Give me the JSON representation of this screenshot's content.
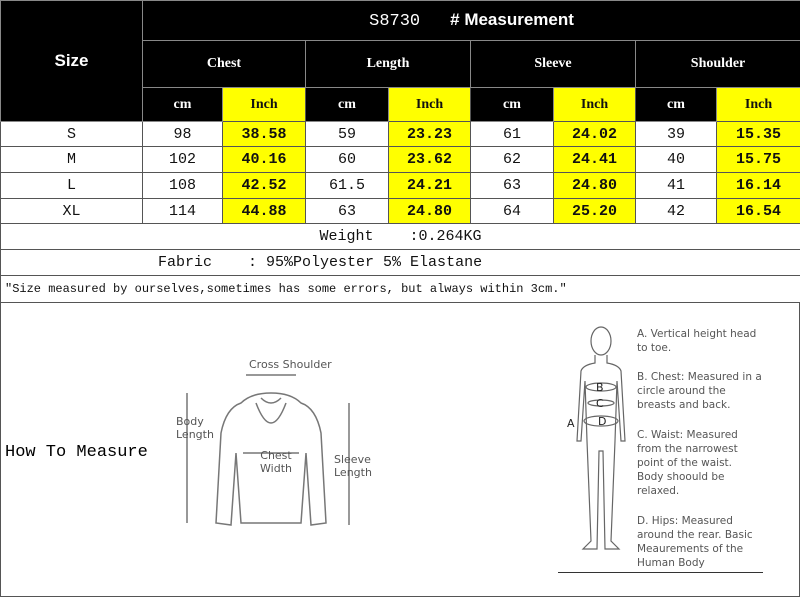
{
  "header": {
    "size_label": "Size",
    "model": "S8730",
    "title": "# Measurement",
    "columns": [
      "Chest",
      "Length",
      "Sleeve",
      "Shoulder"
    ],
    "units": [
      "cm",
      "Inch"
    ]
  },
  "rows": [
    {
      "size": "S",
      "values": [
        "98",
        "38.58",
        "59",
        "23.23",
        "61",
        "24.02",
        "39",
        "15.35"
      ]
    },
    {
      "size": "M",
      "values": [
        "102",
        "40.16",
        "60",
        "23.62",
        "62",
        "24.41",
        "40",
        "15.75"
      ]
    },
    {
      "size": "L",
      "values": [
        "108",
        "42.52",
        "61.5",
        "24.21",
        "63",
        "24.80",
        "41",
        "16.14"
      ]
    },
    {
      "size": "XL",
      "values": [
        "114",
        "44.88",
        "63",
        "24.80",
        "64",
        "25.20",
        "42",
        "16.54"
      ]
    }
  ],
  "weight": {
    "label": "Weight",
    "value": ":0.264KG"
  },
  "fabric": {
    "label": "Fabric",
    "value": ": 95%Polyester 5% Elastane"
  },
  "note": "\"Size measured by ourselves,sometimes has some errors, but always within 3cm.\"",
  "how_to": {
    "title": "How To Measure",
    "garment_labels": {
      "shoulder": "Cross Shoulder",
      "body": "Body Length",
      "chest": "Chest Width",
      "sleeve": "Sleeve Length"
    },
    "body_letters": [
      "A",
      "B",
      "C",
      "D"
    ],
    "descriptions": [
      "A. Vertical height head to toe.",
      "B. Chest: Measured in a circle around the breasts and back.",
      "C. Waist: Measured from the narrowest point of the waist. Body shoould be relaxed.",
      "D. Hips: Measured around the rear. Basic Meaurements of the Human Body"
    ]
  },
  "colors": {
    "highlight": "#ffff00",
    "header_bg": "#000000"
  }
}
